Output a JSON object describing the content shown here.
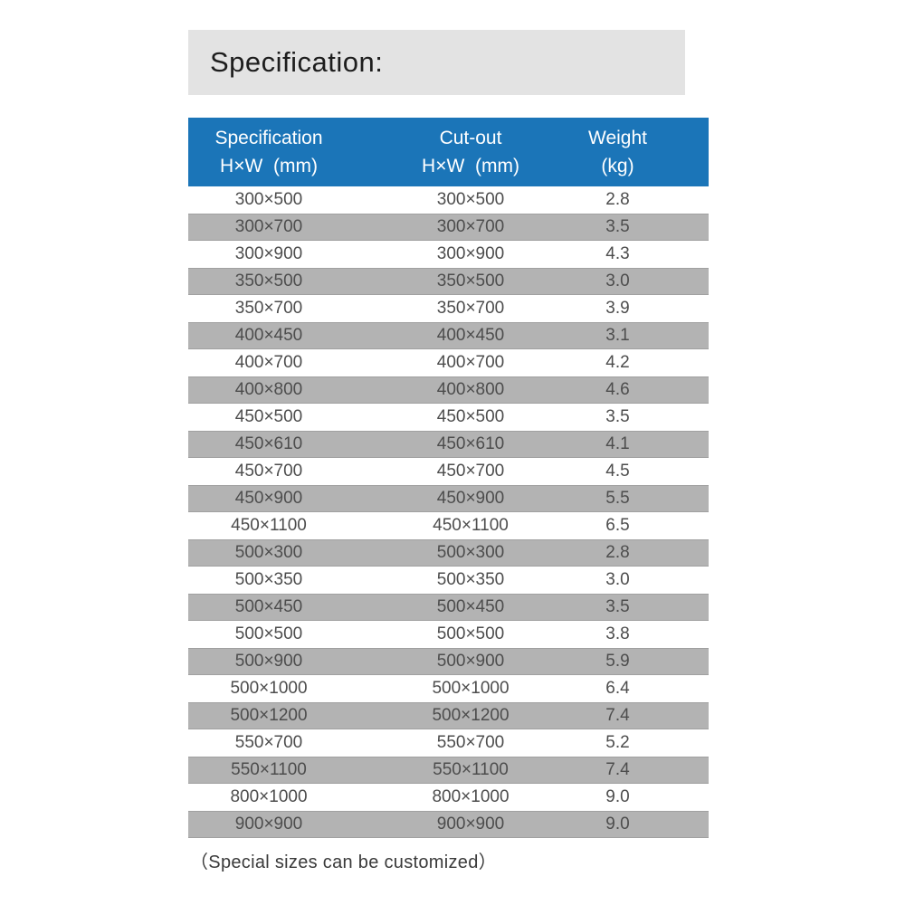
{
  "colors": {
    "title_bar_background": "#e3e3e3",
    "table_header_background": "#1b75b8",
    "row_alt_background": "#b3b3b3",
    "row_background": "#ffffff",
    "row_text": "#4d4d4d",
    "header_text": "#ffffff"
  },
  "title_bar": {
    "text": "Specification:"
  },
  "table": {
    "header": {
      "columns": [
        {
          "line1": "Specification",
          "line2": "H×W  (mm)"
        },
        {
          "line1": "Cut-out",
          "line2": "H×W  (mm)"
        },
        {
          "line1": "Weight",
          "line2": "(kg)"
        }
      ]
    },
    "rows": [
      {
        "spec": "300×500",
        "cutout": "300×500",
        "weight": "2.8"
      },
      {
        "spec": "300×700",
        "cutout": "300×700",
        "weight": "3.5"
      },
      {
        "spec": "300×900",
        "cutout": "300×900",
        "weight": "4.3"
      },
      {
        "spec": "350×500",
        "cutout": "350×500",
        "weight": "3.0"
      },
      {
        "spec": "350×700",
        "cutout": "350×700",
        "weight": "3.9"
      },
      {
        "spec": "400×450",
        "cutout": "400×450",
        "weight": "3.1"
      },
      {
        "spec": "400×700",
        "cutout": "400×700",
        "weight": "4.2"
      },
      {
        "spec": "400×800",
        "cutout": "400×800",
        "weight": "4.6"
      },
      {
        "spec": "450×500",
        "cutout": "450×500",
        "weight": "3.5"
      },
      {
        "spec": "450×610",
        "cutout": "450×610",
        "weight": "4.1"
      },
      {
        "spec": "450×700",
        "cutout": "450×700",
        "weight": "4.5"
      },
      {
        "spec": "450×900",
        "cutout": "450×900",
        "weight": "5.5"
      },
      {
        "spec": "450×1100",
        "cutout": "450×1100",
        "weight": "6.5"
      },
      {
        "spec": "500×300",
        "cutout": "500×300",
        "weight": "2.8"
      },
      {
        "spec": "500×350",
        "cutout": "500×350",
        "weight": "3.0"
      },
      {
        "spec": "500×450",
        "cutout": "500×450",
        "weight": "3.5"
      },
      {
        "spec": "500×500",
        "cutout": "500×500",
        "weight": "3.8"
      },
      {
        "spec": "500×900",
        "cutout": "500×900",
        "weight": "5.9"
      },
      {
        "spec": "500×1000",
        "cutout": "500×1000",
        "weight": "6.4"
      },
      {
        "spec": "500×1200",
        "cutout": "500×1200",
        "weight": "7.4"
      },
      {
        "spec": "550×700",
        "cutout": "550×700",
        "weight": "5.2"
      },
      {
        "spec": "550×1100",
        "cutout": "550×1100",
        "weight": "7.4"
      },
      {
        "spec": "800×1000",
        "cutout": "800×1000",
        "weight": "9.0"
      },
      {
        "spec": "900×900",
        "cutout": "900×900",
        "weight": "9.0"
      }
    ]
  },
  "footer_note": {
    "text": "（Special sizes can be customized）"
  }
}
